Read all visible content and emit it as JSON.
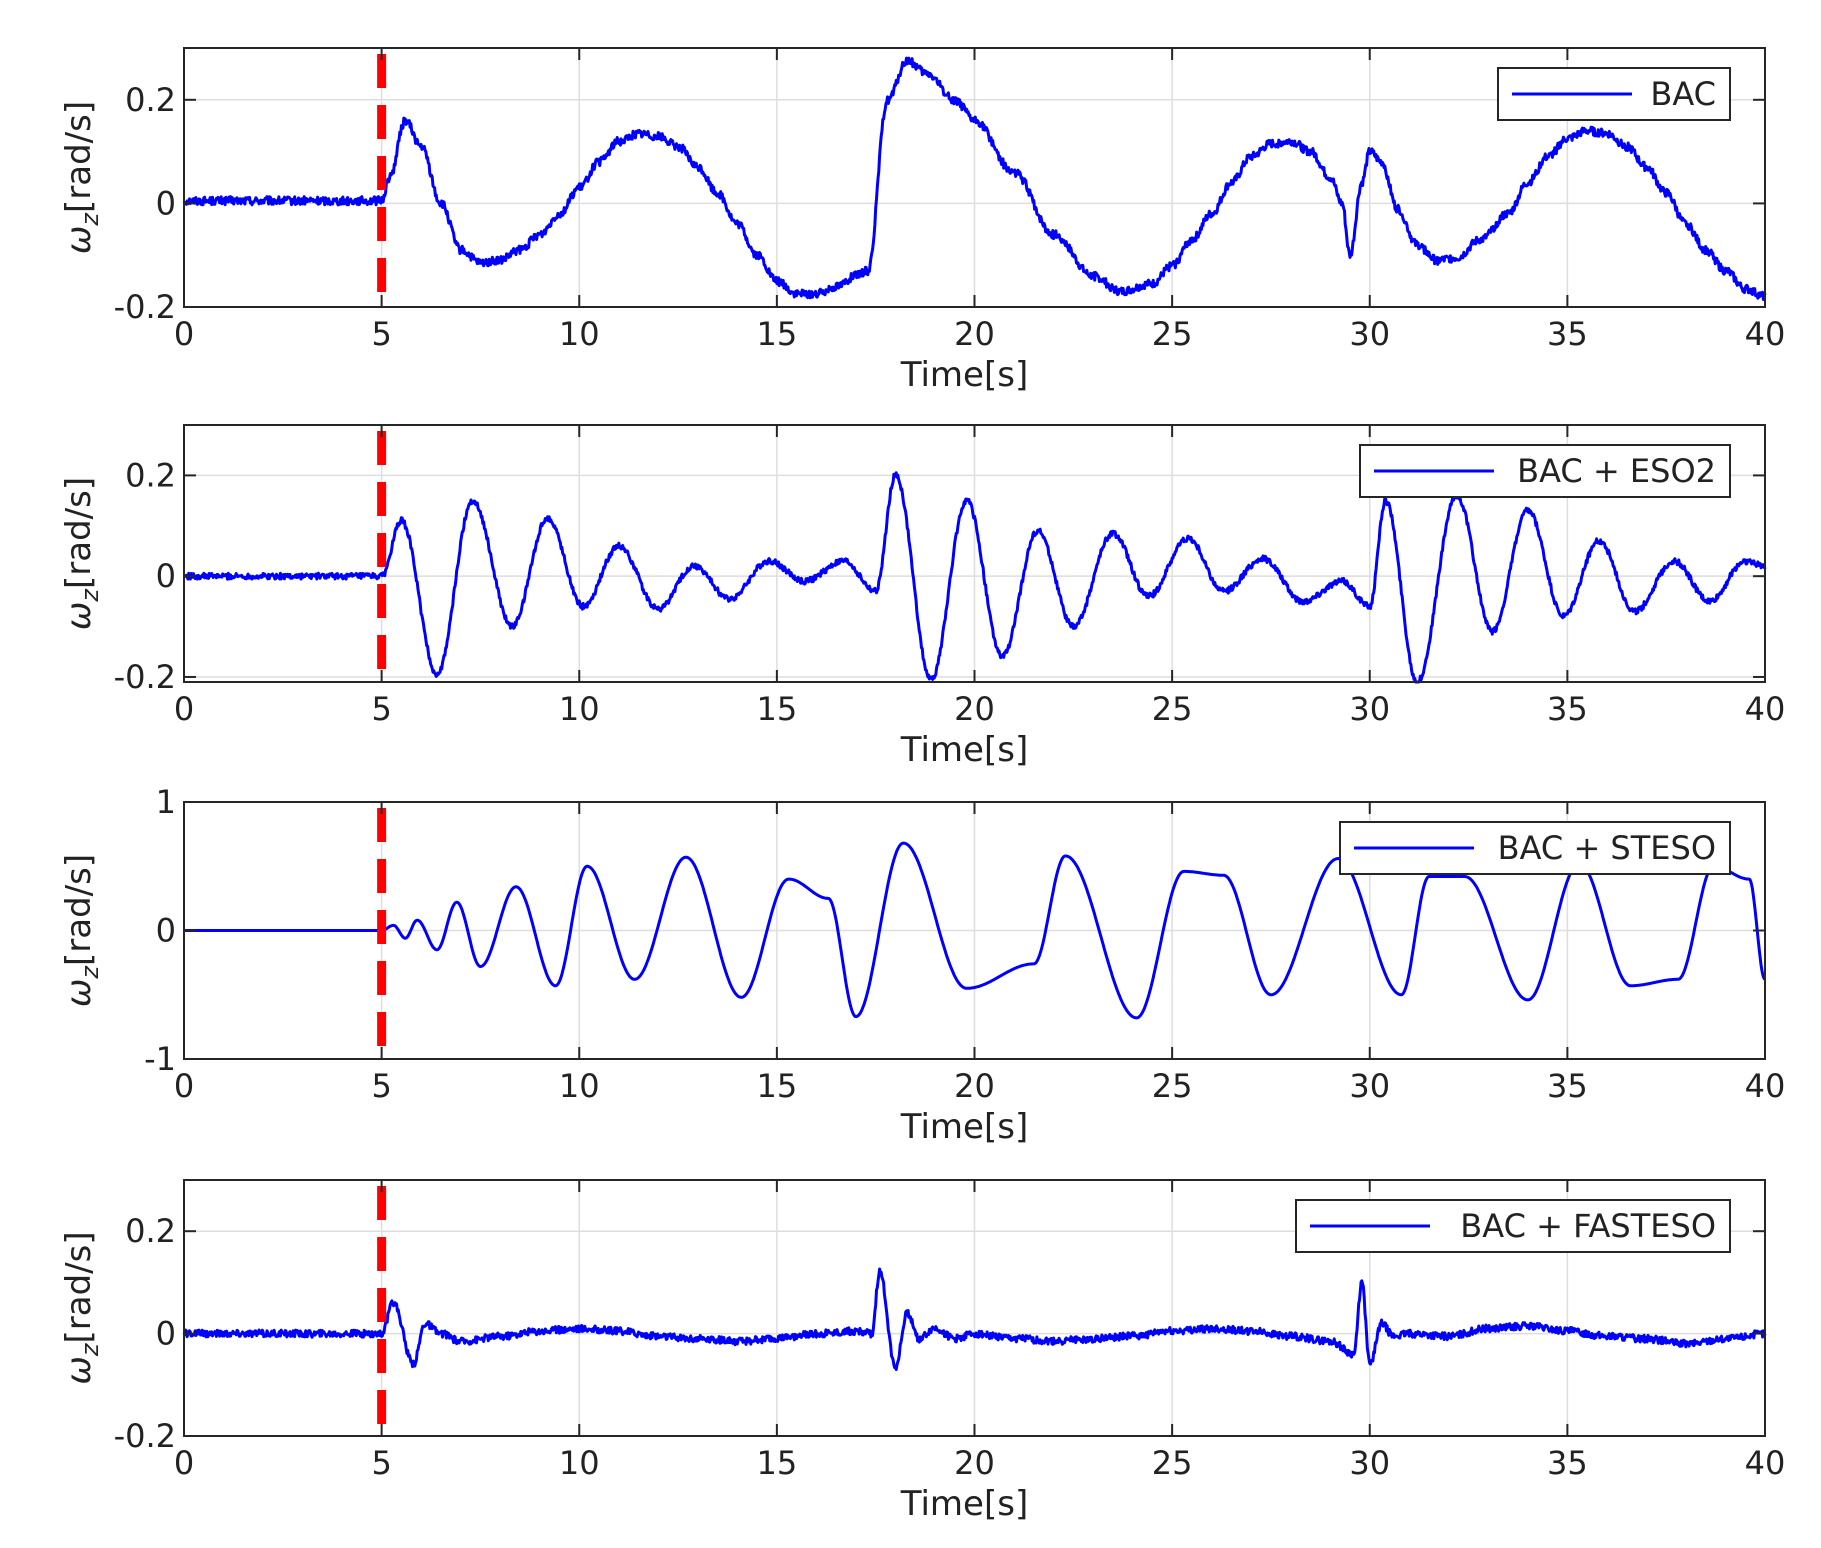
{
  "chart_data": [
    {
      "type": "line",
      "xlabel": "Time[s]",
      "ylabel": "ω_z[rad/s]",
      "xlim": [
        0,
        40
      ],
      "ylim": [
        -0.2,
        0.3
      ],
      "xticks": [
        "0",
        "5",
        "10",
        "15",
        "20",
        "25",
        "30",
        "35",
        "40"
      ],
      "yticks": [
        {
          "v": -0.2,
          "label": "-0.2"
        },
        {
          "v": 0,
          "label": "0"
        },
        {
          "v": 0.2,
          "label": "0.2"
        }
      ],
      "grid": true,
      "legend": "top-right",
      "marker_line": {
        "x": 5,
        "color": "#ff0000",
        "style": "dashed"
      },
      "series": [
        {
          "name": "BAC",
          "color": "#0000ff",
          "x": [
            0,
            5,
            5.2,
            5.6,
            6.0,
            6.5,
            7.0,
            7.5,
            8.0,
            8.5,
            9.0,
            9.5,
            10.0,
            10.5,
            11.0,
            11.5,
            12.0,
            12.5,
            13.0,
            13.5,
            14.0,
            14.5,
            15.0,
            15.5,
            16.0,
            16.5,
            17.0,
            17.3,
            17.8,
            18.3,
            18.8,
            19.5,
            20.0,
            21.0,
            22.0,
            23.0,
            23.7,
            24.5,
            25.0,
            25.5,
            26.0,
            26.5,
            27.0,
            27.5,
            28.0,
            28.5,
            29.0,
            29.3,
            29.5,
            29.8,
            30.0,
            30.3,
            30.7,
            31.2,
            31.7,
            32.2,
            32.8,
            33.5,
            34.0,
            34.5,
            35.0,
            35.5,
            36.0,
            36.5,
            37.0,
            37.5,
            38.0,
            38.5,
            39.0,
            39.5,
            40.0
          ],
          "y": [
            0.005,
            0.005,
            0.05,
            0.16,
            0.11,
            0.0,
            -0.09,
            -0.115,
            -0.11,
            -0.09,
            -0.06,
            -0.02,
            0.03,
            0.08,
            0.12,
            0.135,
            0.13,
            0.11,
            0.07,
            0.02,
            -0.04,
            -0.1,
            -0.15,
            -0.175,
            -0.175,
            -0.16,
            -0.14,
            -0.13,
            0.2,
            0.275,
            0.25,
            0.2,
            0.16,
            0.06,
            -0.06,
            -0.14,
            -0.17,
            -0.155,
            -0.12,
            -0.07,
            -0.02,
            0.04,
            0.09,
            0.115,
            0.12,
            0.1,
            0.05,
            0.0,
            -0.1,
            0.04,
            0.1,
            0.08,
            -0.01,
            -0.08,
            -0.11,
            -0.105,
            -0.07,
            -0.02,
            0.04,
            0.09,
            0.125,
            0.14,
            0.135,
            0.11,
            0.07,
            0.02,
            -0.04,
            -0.09,
            -0.13,
            -0.165,
            -0.18
          ],
          "noise": 0.008
        }
      ]
    },
    {
      "type": "line",
      "xlabel": "Time[s]",
      "ylabel": "ω_z[rad/s]",
      "xlim": [
        0,
        40
      ],
      "ylim": [
        -0.21,
        0.3
      ],
      "xticks": [
        "0",
        "5",
        "10",
        "15",
        "20",
        "25",
        "30",
        "35",
        "40"
      ],
      "yticks": [
        {
          "v": -0.2,
          "label": "-0.2"
        },
        {
          "v": 0,
          "label": "0"
        },
        {
          "v": 0.2,
          "label": "0.2"
        }
      ],
      "grid": true,
      "legend": "top-right",
      "marker_line": {
        "x": 5,
        "color": "#ff0000",
        "style": "dashed"
      },
      "series": [
        {
          "name": "BAC + ESO2",
          "color": "#0000ff",
          "x": [
            0,
            5,
            5.5,
            6.4,
            7.3,
            8.3,
            9.2,
            10.1,
            11.0,
            12.0,
            12.9,
            13.8,
            14.8,
            15.7,
            16.7,
            17.5,
            18.0,
            18.9,
            19.8,
            20.7,
            21.6,
            22.5,
            23.5,
            24.4,
            25.4,
            26.3,
            27.3,
            28.3,
            29.3,
            30.0,
            30.4,
            31.2,
            32.2,
            33.1,
            34.0,
            34.9,
            35.8,
            36.7,
            37.7,
            38.6,
            39.5,
            40.0
          ],
          "y": [
            0.0,
            0.0,
            0.11,
            -0.195,
            0.15,
            -0.1,
            0.115,
            -0.06,
            0.06,
            -0.065,
            0.02,
            -0.045,
            0.03,
            -0.01,
            0.03,
            -0.03,
            0.2,
            -0.205,
            0.15,
            -0.16,
            0.09,
            -0.1,
            0.085,
            -0.04,
            0.075,
            -0.03,
            0.035,
            -0.05,
            -0.01,
            -0.06,
            0.15,
            -0.21,
            0.16,
            -0.11,
            0.13,
            -0.08,
            0.07,
            -0.07,
            0.03,
            -0.05,
            0.03,
            0.02
          ],
          "noise": 0.006
        }
      ]
    },
    {
      "type": "line",
      "xlabel": "Time[s]",
      "ylabel": "ω_z[rad/s]",
      "xlim": [
        0,
        40
      ],
      "ylim": [
        -1,
        1
      ],
      "xticks": [
        "0",
        "5",
        "10",
        "15",
        "20",
        "25",
        "30",
        "35",
        "40"
      ],
      "yticks": [
        {
          "v": -1,
          "label": "-1"
        },
        {
          "v": 0,
          "label": "0"
        },
        {
          "v": 1,
          "label": "1"
        }
      ],
      "grid": true,
      "legend": "top-right",
      "marker_line": {
        "x": 5,
        "color": "#ff0000",
        "style": "dashed"
      },
      "series": [
        {
          "name": "BAC + STESO",
          "color": "#0000ff",
          "x": [
            0,
            5,
            5.3,
            5.6,
            5.9,
            6.4,
            6.9,
            7.5,
            8.4,
            9.4,
            10.2,
            11.4,
            12.7,
            14.1,
            15.3,
            16.3,
            17.0,
            18.2,
            19.8,
            21.5,
            22.3,
            24.1,
            25.3,
            26.3,
            27.5,
            29.2,
            30.8,
            31.5,
            32.4,
            34.0,
            35.3,
            36.6,
            37.8,
            38.7,
            39.6,
            40.0
          ],
          "y": [
            0.0,
            0.0,
            0.04,
            -0.06,
            0.08,
            -0.15,
            0.22,
            -0.28,
            0.34,
            -0.43,
            0.5,
            -0.38,
            0.57,
            -0.52,
            0.4,
            0.25,
            -0.67,
            0.68,
            -0.45,
            -0.26,
            0.58,
            -0.68,
            0.46,
            0.43,
            -0.5,
            0.56,
            -0.5,
            0.42,
            0.42,
            -0.54,
            0.52,
            -0.43,
            -0.38,
            0.5,
            0.4,
            -0.38
          ],
          "noise": 0.0
        }
      ]
    },
    {
      "type": "line",
      "xlabel": "Time[s]",
      "ylabel": "ω_z[rad/s]",
      "xlim": [
        0,
        40
      ],
      "ylim": [
        -0.2,
        0.3
      ],
      "xticks": [
        "0",
        "5",
        "10",
        "15",
        "20",
        "25",
        "30",
        "35",
        "40"
      ],
      "yticks": [
        {
          "v": -0.2,
          "label": "-0.2"
        },
        {
          "v": 0,
          "label": "0"
        },
        {
          "v": 0.2,
          "label": "0.2"
        }
      ],
      "grid": true,
      "legend": "top-right",
      "marker_line": {
        "x": 5,
        "color": "#ff0000",
        "style": "dashed"
      },
      "series": [
        {
          "name": "BAC + FASTESO",
          "color": "#0000ff",
          "x": [
            0,
            5,
            5.3,
            5.8,
            6.1,
            6.5,
            7.0,
            8.0,
            9.0,
            10.0,
            11.0,
            12.0,
            13.0,
            14.0,
            15.0,
            16.0,
            17.0,
            17.4,
            17.6,
            18.0,
            18.3,
            18.6,
            19.0,
            19.5,
            20.0,
            21.0,
            22.0,
            23.0,
            24.0,
            25.0,
            26.0,
            27.0,
            28.0,
            29.0,
            29.6,
            29.8,
            30.0,
            30.3,
            30.6,
            31.0,
            32.0,
            33.0,
            34.0,
            35.0,
            36.0,
            37.0,
            38.0,
            39.0,
            40.0
          ],
          "y": [
            0.0,
            0.0,
            0.06,
            -0.06,
            0.02,
            0.0,
            -0.015,
            -0.005,
            0.005,
            0.01,
            0.005,
            -0.005,
            -0.01,
            -0.015,
            -0.01,
            0.0,
            0.005,
            0.0,
            0.12,
            -0.065,
            0.04,
            -0.01,
            0.01,
            -0.01,
            0.0,
            -0.01,
            -0.015,
            -0.01,
            -0.005,
            0.005,
            0.01,
            0.005,
            -0.005,
            -0.015,
            -0.04,
            0.1,
            -0.06,
            0.02,
            -0.005,
            0.0,
            -0.005,
            0.01,
            0.015,
            0.005,
            -0.005,
            -0.01,
            -0.02,
            -0.01,
            0.0
          ],
          "noise": 0.007
        }
      ]
    }
  ]
}
